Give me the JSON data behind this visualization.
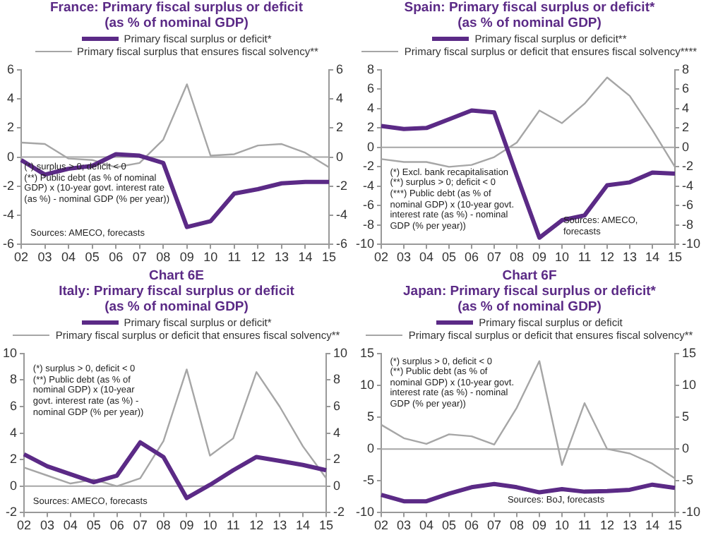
{
  "chart_data": [
    {
      "type": "line",
      "title": "France: Primary fiscal surplus or deficit\n(as % of nominal GDP)",
      "categories": [
        "02",
        "03",
        "04",
        "05",
        "06",
        "07",
        "08",
        "09",
        "10",
        "11",
        "12",
        "13",
        "14",
        "15"
      ],
      "series": [
        {
          "name": "Primary fiscal surplus or deficit*",
          "color": "#5b2a86",
          "values": [
            -0.2,
            -1.2,
            -0.8,
            -0.6,
            0.2,
            0.1,
            -0.4,
            -4.8,
            -4.4,
            -2.5,
            -2.2,
            -1.8,
            -1.7,
            -1.7
          ]
        },
        {
          "name": "Primary fiscal surplus that ensures fiscal solvency**",
          "color": "#a6a6a6",
          "values": [
            1.0,
            0.9,
            -0.1,
            -0.2,
            -0.7,
            -0.4,
            1.2,
            5.0,
            0.1,
            0.2,
            0.8,
            0.9,
            0.3,
            -0.7
          ]
        }
      ],
      "ylim": [
        -6,
        6
      ],
      "yticks": [
        -6,
        -4,
        -2,
        0,
        2,
        4,
        6
      ],
      "y2lim": [
        -6,
        6
      ],
      "y2ticks": [
        -6,
        -4,
        -2,
        0,
        2,
        4,
        6
      ],
      "grid": false,
      "legend": "top",
      "marker": "none",
      "ref_lines": [
        {
          "axis": "y",
          "value": 0,
          "color": "#a6a6a6"
        }
      ],
      "annotations": [
        "(*) surplus > 0; deficit < 0\n(**) Public debt (as % of nominal\nGDP) x (10-year govt. interest rate\n(as %) - nominal GDP (% per year))",
        "Sources: AMECO, forecasts"
      ]
    },
    {
      "type": "line",
      "title": "Spain: Primary fiscal surplus or deficit*\n(as % of nominal GDP)",
      "categories": [
        "02",
        "03",
        "04",
        "05",
        "06",
        "07",
        "08",
        "09",
        "10",
        "11",
        "12",
        "13",
        "14",
        "15"
      ],
      "series": [
        {
          "name": "Primary fiscal surplus or deficit**",
          "color": "#5b2a86",
          "values": [
            2.2,
            1.9,
            2.0,
            2.9,
            3.8,
            3.6,
            -2.9,
            -9.3,
            -7.5,
            -7.0,
            -3.9,
            -3.6,
            -2.6,
            -2.7
          ]
        },
        {
          "name": "Primary fiscal surplus or deficit that ensures fiscal solvency****",
          "color": "#a6a6a6",
          "values": [
            -1.2,
            -1.5,
            -1.5,
            -2.0,
            -1.8,
            -1.0,
            0.5,
            3.8,
            2.5,
            4.5,
            7.2,
            5.3,
            1.8,
            -2.0
          ]
        }
      ],
      "ylim": [
        -10,
        8
      ],
      "yticks": [
        -10,
        -8,
        -6,
        -4,
        -2,
        0,
        2,
        4,
        6,
        8
      ],
      "y2lim": [
        -10,
        8
      ],
      "y2ticks": [
        -10,
        -8,
        -6,
        -4,
        -2,
        0,
        2,
        4,
        6,
        8
      ],
      "grid": false,
      "legend": "top",
      "marker": "none",
      "ref_lines": [
        {
          "axis": "y",
          "value": 0,
          "color": "#a6a6a6"
        }
      ],
      "annotations": [
        "(*) Excl. bank recapitalisation\n(**) surplus > 0; deficit < 0\n(***) Public debt (as % of\nnominal GDP) x (10-year govt.\ninterest rate (as %) - nominal\nGDP (% per year))",
        "Sources: AMECO,\nforecasts"
      ]
    },
    {
      "type": "line",
      "title": "Chart 6E\nItaly: Primary fiscal surplus or deficit\n(as % of nominal GDP)",
      "categories": [
        "02",
        "03",
        "04",
        "05",
        "06",
        "07",
        "08",
        "09",
        "10",
        "11",
        "12",
        "13",
        "14",
        "15"
      ],
      "series": [
        {
          "name": "Primary fiscal surplus or deficit*",
          "color": "#5b2a86",
          "values": [
            2.4,
            1.5,
            0.9,
            0.3,
            0.8,
            3.3,
            2.2,
            -0.9,
            0.1,
            1.2,
            2.2,
            1.9,
            1.6,
            1.2
          ]
        },
        {
          "name": "Primary fiscal surplus or deficit that ensures fiscal solvency**",
          "color": "#a6a6a6",
          "values": [
            1.4,
            0.8,
            0.2,
            0.5,
            0.0,
            0.6,
            3.4,
            8.8,
            2.3,
            3.6,
            8.6,
            6.0,
            3.0,
            0.6
          ]
        }
      ],
      "ylim": [
        -2,
        10
      ],
      "yticks": [
        -2,
        0,
        2,
        4,
        6,
        8,
        10
      ],
      "y2lim": [
        -2,
        10
      ],
      "y2ticks": [
        -2,
        0,
        2,
        4,
        6,
        8,
        10
      ],
      "grid": false,
      "legend": "top",
      "marker": "none",
      "ref_lines": [
        {
          "axis": "y",
          "value": 0,
          "color": "#a6a6a6"
        }
      ],
      "annotations": [
        "(*) surplus > 0, deficit < 0\n(**) Public debt (as % of\nnominal GDP) x (10-year\ngovt. interest rate (as %) -\nnominal GDP (% per year))",
        "Sources: AMECO, forecasts"
      ]
    },
    {
      "type": "line",
      "title": "Chart 6F\nJapan: Primary fiscal surplus or deficit*\n(as % of nominal GDP)",
      "categories": [
        "02",
        "03",
        "04",
        "05",
        "06",
        "07",
        "08",
        "09",
        "10",
        "11",
        "12",
        "13",
        "14",
        "15"
      ],
      "series": [
        {
          "name": "Primary fiscal surplus or deficit",
          "color": "#5b2a86",
          "values": [
            -7.2,
            -8.2,
            -8.2,
            -7.0,
            -6.0,
            -5.5,
            -6.0,
            -6.8,
            -6.3,
            -6.7,
            -6.6,
            -6.4,
            -5.6,
            -6.1
          ]
        },
        {
          "name": "Primary fiscal surplus or deficit that ensures fiscal solvency**",
          "color": "#a6a6a6",
          "values": [
            3.8,
            1.7,
            0.8,
            2.3,
            2.0,
            0.7,
            6.5,
            13.8,
            -2.5,
            7.2,
            0.0,
            -0.7,
            -2.3,
            -4.6
          ]
        }
      ],
      "ylim": [
        -10,
        15
      ],
      "yticks": [
        -10,
        -5,
        0,
        5,
        10,
        15
      ],
      "y2lim": [
        -10,
        15
      ],
      "y2ticks": [
        -10,
        -5,
        0,
        5,
        10,
        15
      ],
      "grid": false,
      "legend": "top",
      "marker": "none",
      "ref_lines": [
        {
          "axis": "y",
          "value": 0,
          "color": "#a6a6a6"
        }
      ],
      "annotations": [
        "(*) surplus > 0, deficit < 0\n(**) Public debt (as % of\nnominal GDP) x (10-year govt.\ninterest rate (as %) - nominal\nGDP (% per year))",
        "Sources: BoJ, forecasts"
      ]
    }
  ]
}
